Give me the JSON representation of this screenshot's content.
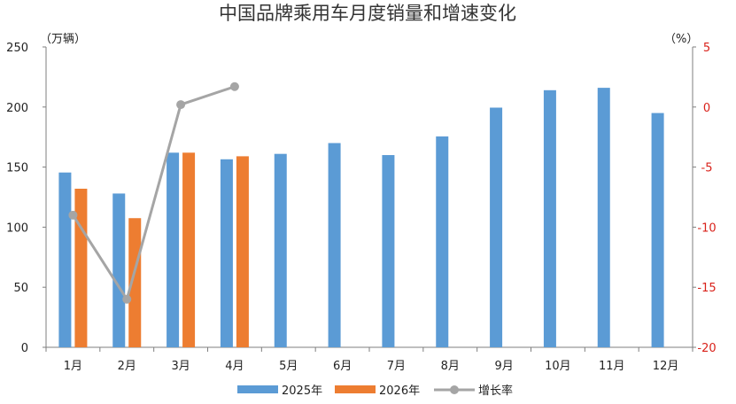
{
  "chart_data": {
    "type": "bar",
    "title": "中国品牌乘用车月度销量和增速变化",
    "ylabel": "（万辆）",
    "y2label": "（%）",
    "categories": [
      "1月",
      "2月",
      "3月",
      "4月",
      "5月",
      "6月",
      "7月",
      "8月",
      "9月",
      "10月",
      "11月",
      "12月"
    ],
    "ylim": [
      0,
      250
    ],
    "yticks": [
      0,
      50,
      100,
      150,
      200,
      250
    ],
    "y2lim": [
      -20,
      5
    ],
    "y2ticks": [
      -20,
      -15,
      -10,
      -5,
      0,
      5
    ],
    "grid": false,
    "legend_position": "bottom",
    "series": [
      {
        "name": "2025年",
        "type": "bar",
        "axis": "left",
        "color": "#5b9bd5",
        "values": [
          145.5,
          128,
          162,
          156.5,
          161,
          170,
          160,
          175.5,
          199.5,
          214,
          216,
          195
        ]
      },
      {
        "name": "2026年",
        "type": "bar",
        "axis": "left",
        "color": "#ed7d31",
        "values": [
          132,
          107.5,
          162,
          159,
          null,
          null,
          null,
          null,
          null,
          null,
          null,
          null
        ]
      },
      {
        "name": "增长率",
        "type": "line",
        "axis": "right",
        "color": "#a5a5a5",
        "values": [
          -9,
          -16,
          0.2,
          1.7,
          null,
          null,
          null,
          null,
          null,
          null,
          null,
          null
        ]
      }
    ]
  }
}
